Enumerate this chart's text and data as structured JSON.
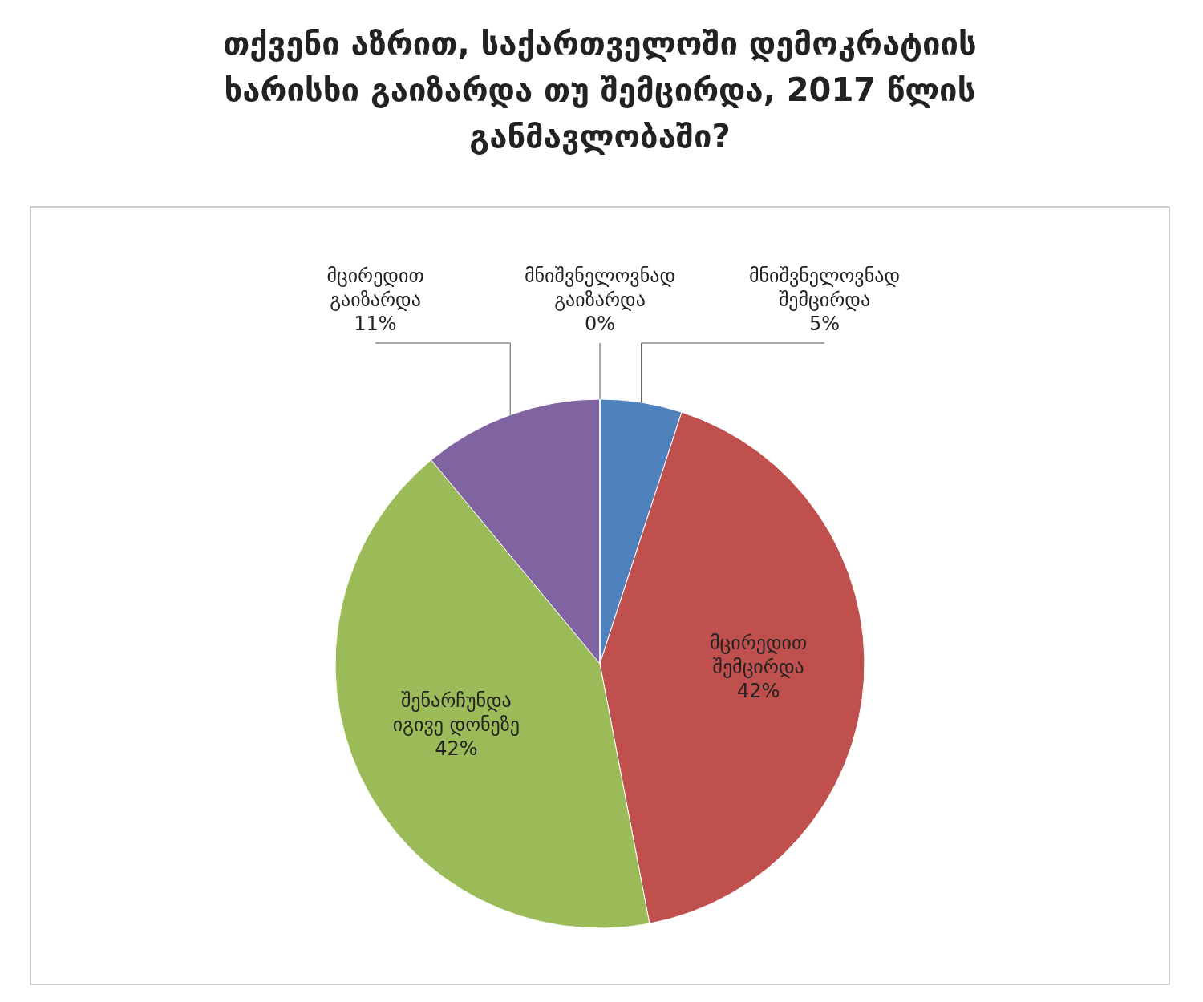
{
  "chart_data": {
    "type": "pie",
    "title": "თქვენი აზრით, საქართველოში დემოკრატიის ხარისხი გაიზარდა თუ შემცირდა, 2017 წლის განმავლობაში?",
    "categories": [
      "მნიშვნელოვნად შემცირდა",
      "მცირედით შემცირდა",
      "შენარჩუნდა იგივე დონეზე",
      "მცირედით გაიზარდა",
      "მნიშვნელოვნად გაიზარდა"
    ],
    "values": [
      5,
      42,
      42,
      11,
      0
    ],
    "colors": [
      "#4f81bd",
      "#c0504d",
      "#9bbb59",
      "#8064a2",
      "#4bacc6"
    ],
    "value_labels": [
      "5%",
      "42%",
      "42%",
      "11%",
      "0%"
    ]
  }
}
